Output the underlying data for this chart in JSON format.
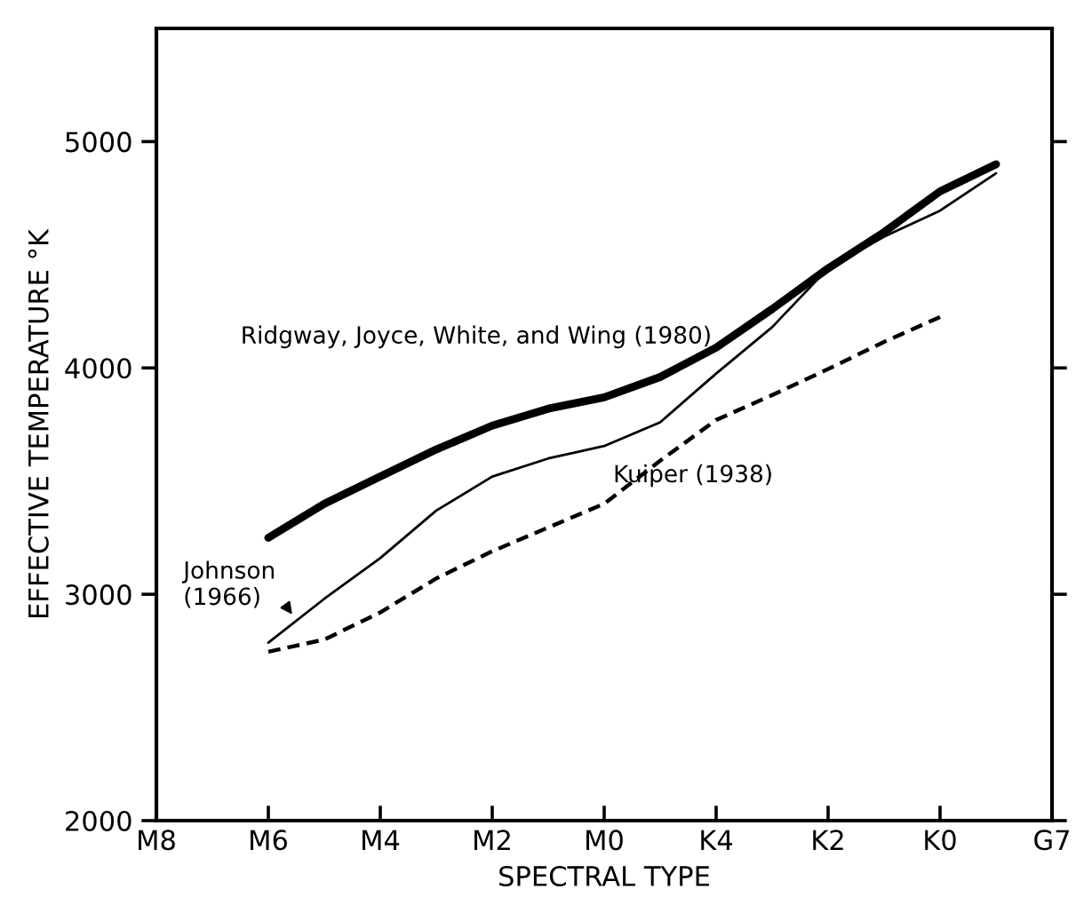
{
  "chart_data": {
    "type": "line",
    "xlabel": "SPECTRAL TYPE",
    "ylabel": "EFFECTIVE TEMPERATURE °K",
    "categories": [
      "M8",
      null,
      "M6",
      null,
      "M4",
      null,
      "M2",
      null,
      "M0",
      null,
      "K4",
      null,
      "K2",
      null,
      "K0",
      null,
      "G7"
    ],
    "ylim": [
      2000,
      5500
    ],
    "yticks": [
      2000,
      3000,
      4000,
      5000
    ],
    "grid": false,
    "legend": false,
    "marker": "none",
    "series": [
      {
        "name": "Ridgway, Joyce, White, and Wing (1980)",
        "color": "#000000",
        "line_style": "solid",
        "values": [
          null,
          null,
          3250,
          3400,
          3520,
          3640,
          3745,
          3820,
          3870,
          3960,
          4090,
          4260,
          4440,
          4600,
          4780,
          4900,
          null
        ]
      },
      {
        "name": "Johnson (1966)",
        "color": "#000000",
        "line_style": "solid",
        "values": [
          null,
          null,
          2786,
          2980,
          3160,
          3370,
          3520,
          3600,
          3655,
          3760,
          3975,
          4180,
          4440,
          4580,
          4695,
          4860,
          null
        ]
      },
      {
        "name": "Kuiper (1938)",
        "color": "#000000",
        "line_style": "dashed",
        "values": [
          null,
          null,
          2746,
          2800,
          2920,
          3070,
          3190,
          3295,
          3400,
          3590,
          3770,
          3880,
          3995,
          4115,
          4225,
          null,
          null
        ]
      }
    ]
  }
}
